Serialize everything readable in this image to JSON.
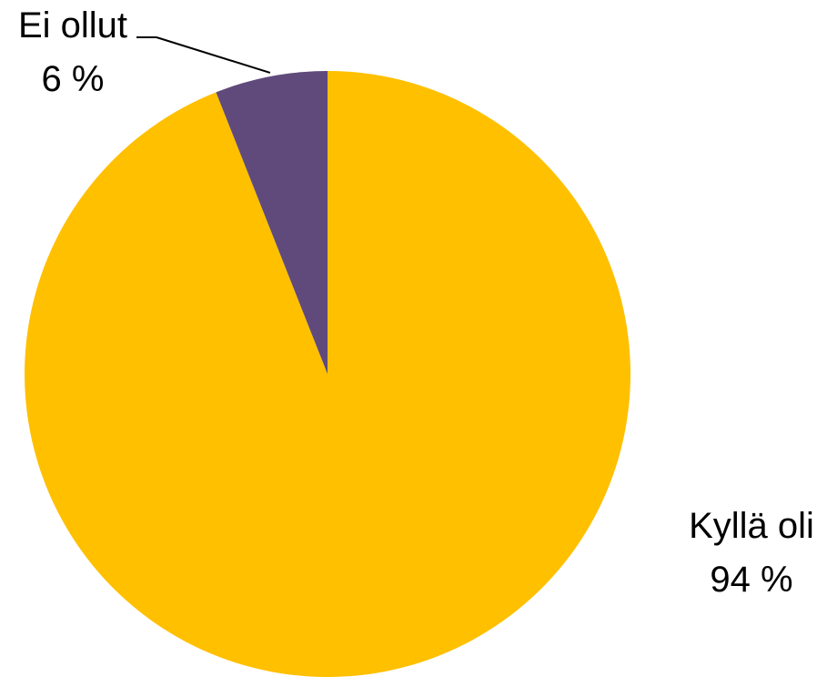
{
  "chart_data": {
    "type": "pie",
    "title": "",
    "categories": [
      "Kyllä oli",
      "Ei ollut"
    ],
    "values": [
      94,
      6
    ],
    "labels": [
      {
        "name": "Kyllä oli",
        "value_text": "94 %"
      },
      {
        "name": "Ei ollut",
        "value_text": "6 %"
      }
    ],
    "colors": [
      "#FFC000",
      "#604A7B"
    ],
    "start_angle_deg": 0,
    "direction": "clockwise",
    "legend": "none"
  }
}
